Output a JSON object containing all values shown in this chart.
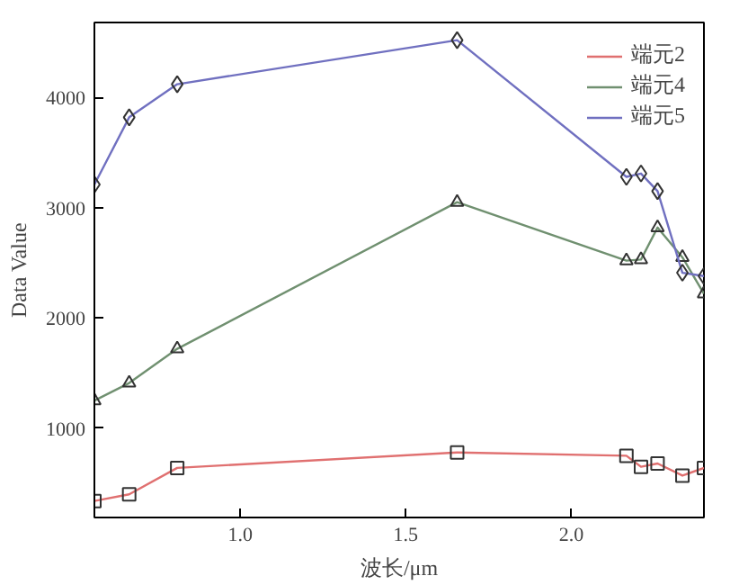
{
  "chart_data": {
    "type": "line",
    "xlabel": "波长/μm",
    "ylabel": "Data Value",
    "x": [
      0.56,
      0.665,
      0.81,
      1.655,
      2.166,
      2.21,
      2.26,
      2.335,
      2.4
    ],
    "series": [
      {
        "name": "端元2",
        "color": "#e07070",
        "marker": "square",
        "values": [
          340,
          400,
          640,
          780,
          750,
          650,
          680,
          570,
          640
        ]
      },
      {
        "name": "端元4",
        "color": "#709070",
        "marker": "triangle",
        "values": [
          1250,
          1410,
          1720,
          3050,
          2520,
          2530,
          2820,
          2550,
          2220
        ]
      },
      {
        "name": "端元5",
        "color": "#7070c0",
        "marker": "diamond",
        "values": [
          3210,
          3820,
          4120,
          4520,
          3280,
          3310,
          3150,
          2410,
          2380
        ]
      }
    ],
    "xlim": [
      0.56,
      2.4
    ],
    "ylim": [
      190,
      4680
    ],
    "xticks": [
      {
        "value": 1,
        "label": "1.0"
      },
      1.5,
      {
        "value": 2,
        "label": "2.0"
      }
    ],
    "yticks": [
      1000,
      2000,
      3000,
      4000
    ],
    "legend": "top right",
    "grid": false,
    "line_style": "solid"
  }
}
